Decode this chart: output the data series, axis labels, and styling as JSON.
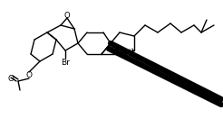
{
  "bg_color": "#ffffff",
  "lc": "#000000",
  "lw": 1.0,
  "bw": 4.5,
  "figsize": [
    2.46,
    1.32
  ],
  "dpi": 100,
  "xlim": [
    0,
    246
  ],
  "ylim": [
    0,
    132
  ]
}
